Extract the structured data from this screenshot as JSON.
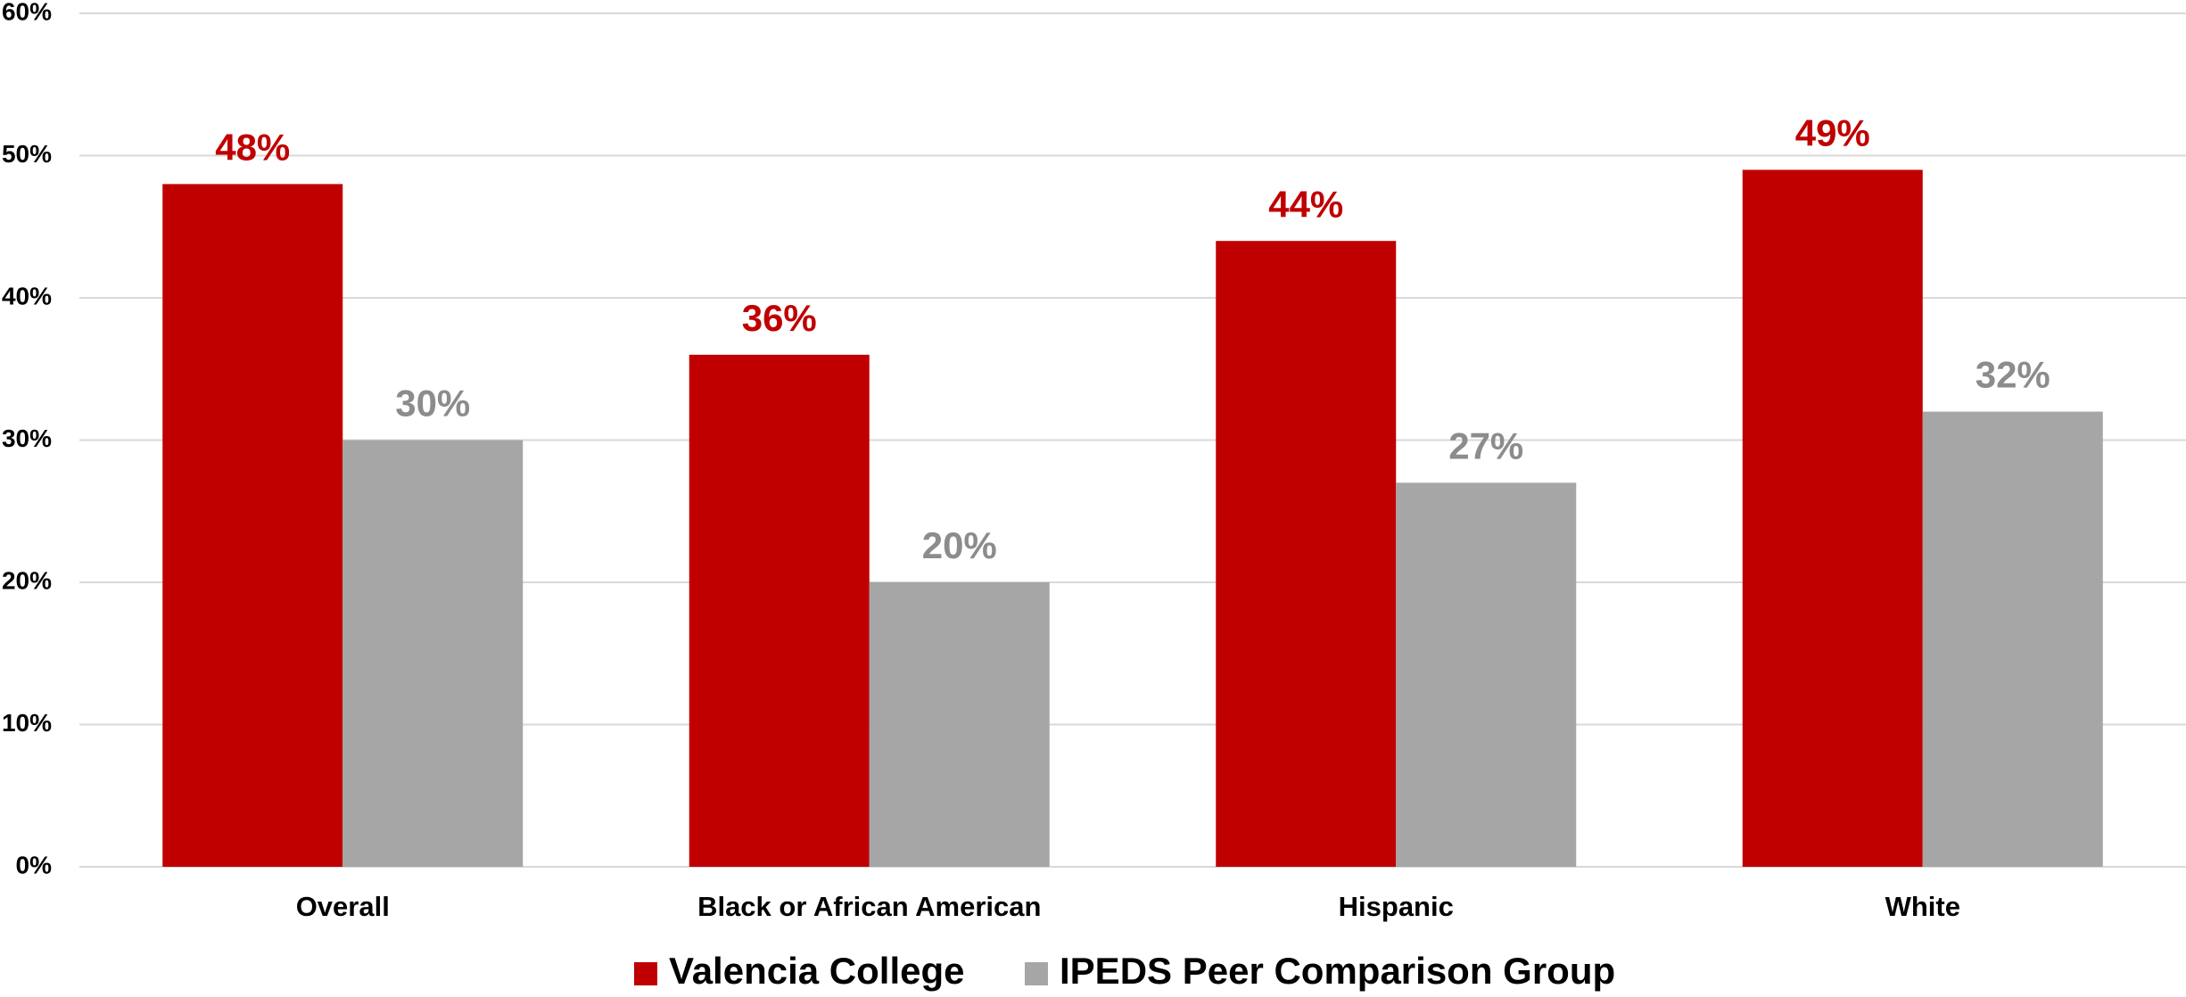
{
  "chart_data": {
    "type": "bar",
    "categories": [
      "Overall",
      "Black or African American",
      "Hispanic",
      "White"
    ],
    "series": [
      {
        "name": "Valencia College",
        "color": "#c00000",
        "values": [
          48,
          36,
          44,
          49
        ],
        "value_labels": [
          "48%",
          "36%",
          "44%",
          "49%"
        ],
        "label_color": "#c00000"
      },
      {
        "name": "IPEDS Peer Comparison Group",
        "color": "#a6a6a6",
        "values": [
          30,
          20,
          27,
          32
        ],
        "value_labels": [
          "30%",
          "20%",
          "27%",
          "32%"
        ],
        "label_color": "#8c8c8c"
      }
    ],
    "ylim": [
      0,
      60
    ],
    "yticks": [
      {
        "value": 0,
        "label": "0%"
      },
      {
        "value": 10,
        "label": "10%"
      },
      {
        "value": 20,
        "label": "20%"
      },
      {
        "value": 30,
        "label": "30%"
      },
      {
        "value": 40,
        "label": "40%"
      },
      {
        "value": 50,
        "label": "50%"
      },
      {
        "value": 60,
        "label": "60%"
      }
    ],
    "grid": true,
    "legend": "bottom"
  }
}
